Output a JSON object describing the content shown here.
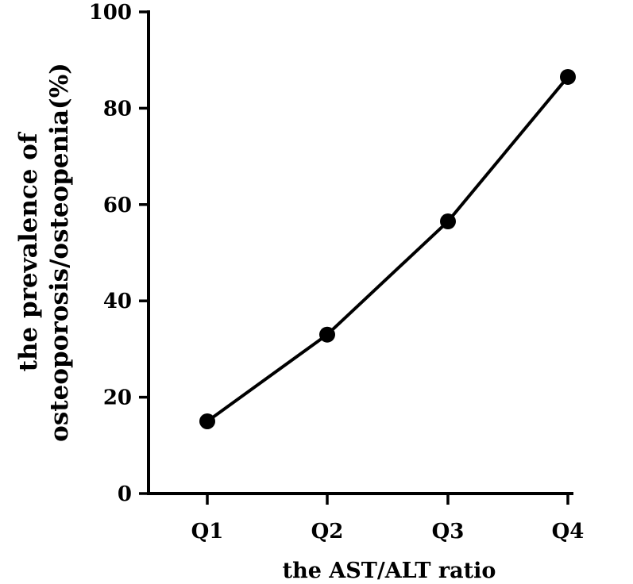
{
  "chart_data": {
    "type": "line",
    "categories": [
      "Q1",
      "Q2",
      "Q3",
      "Q4"
    ],
    "values": [
      15,
      33,
      56.5,
      86.5
    ],
    "xlabel": "the AST/ALT ratio",
    "ylabel_lines": [
      "the prevalence of",
      "osteoporosis/osteopenia(%)"
    ],
    "ylim": [
      0,
      100
    ],
    "yticks": [
      0,
      20,
      40,
      60,
      80,
      100
    ],
    "colors": {
      "line": "#000000",
      "marker": "#000000"
    }
  }
}
